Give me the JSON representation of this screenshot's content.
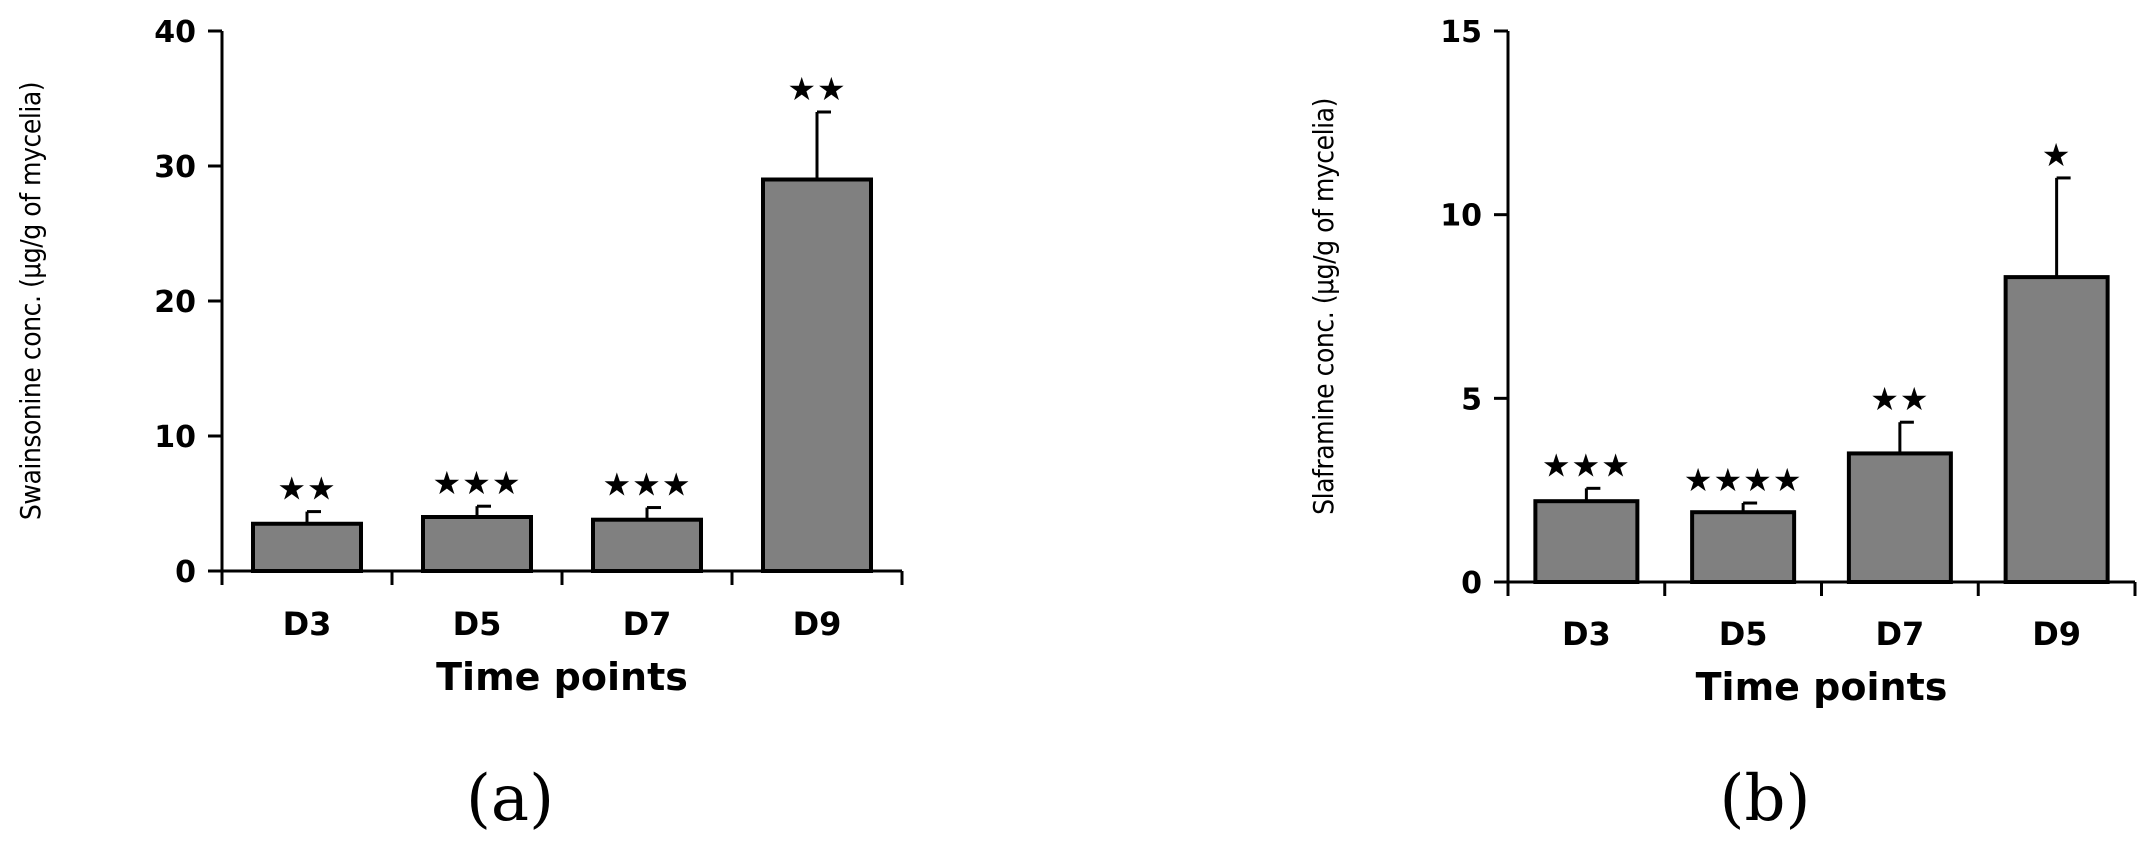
{
  "chart_data": [
    {
      "type": "bar",
      "panel_label": "(a)",
      "categories": [
        "D3",
        "D5",
        "D7",
        "D9"
      ],
      "values": [
        3.5,
        4.0,
        3.8,
        29.0
      ],
      "error_plus": [
        0.9,
        0.8,
        0.9,
        5.0
      ],
      "significance": [
        "★★",
        "★★★",
        "★★★",
        "★★"
      ],
      "xlabel": "Time points",
      "ylabel": "Swainsonine conc. (µg/g of mycelia)",
      "ylim": [
        0,
        40
      ],
      "yticks": [
        0,
        10,
        20,
        30,
        40
      ],
      "bar_color": "#808080",
      "grid": false
    },
    {
      "type": "bar",
      "panel_label": "(b)",
      "categories": [
        "D3",
        "D5",
        "D7",
        "D9"
      ],
      "values": [
        2.2,
        1.9,
        3.5,
        8.3
      ],
      "error_plus": [
        0.35,
        0.25,
        0.85,
        2.7
      ],
      "significance": [
        "★★★",
        "★★★★",
        "★★",
        "★"
      ],
      "xlabel": "Time points",
      "ylabel": "Slaframine conc. (µg/g of mycelia)",
      "ylim": [
        0,
        15
      ],
      "yticks": [
        0,
        5,
        10,
        15
      ],
      "bar_color": "#808080",
      "grid": false
    }
  ]
}
